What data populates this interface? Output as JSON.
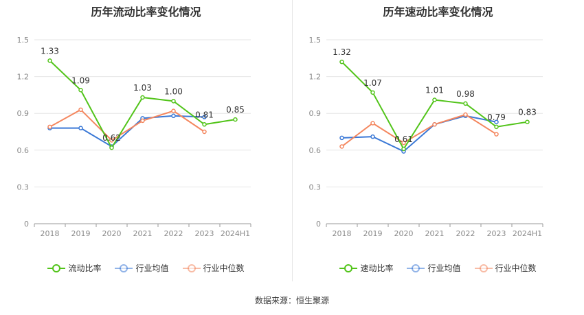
{
  "chart_data": [
    {
      "type": "line",
      "title": "历年流动比率变化情况",
      "categories": [
        "2018",
        "2019",
        "2020",
        "2021",
        "2022",
        "2023",
        "2024H1"
      ],
      "y_ticks": [
        "0",
        "0.3",
        "0.6",
        "0.9",
        "1.2",
        "1.5"
      ],
      "ylim": [
        0,
        1.5
      ],
      "grid": true,
      "legend_position": "bottom",
      "series": [
        {
          "name": "流动比率",
          "color": "#52c41a",
          "values": [
            1.33,
            1.09,
            0.62,
            1.03,
            1.0,
            0.81,
            0.85
          ],
          "labels": [
            "1.33",
            "1.09",
            "0.62",
            "1.03",
            "1.00",
            "0.81",
            "0.85"
          ]
        },
        {
          "name": "行业均值",
          "color": "#3a78d6",
          "values": [
            0.78,
            0.78,
            0.63,
            0.86,
            0.88,
            0.87,
            null
          ]
        },
        {
          "name": "行业中位数",
          "color": "#f4875f",
          "values": [
            0.79,
            0.93,
            0.68,
            0.84,
            0.92,
            0.75,
            null
          ]
        }
      ]
    },
    {
      "type": "line",
      "title": "历年速动比率变化情况",
      "categories": [
        "2018",
        "2019",
        "2020",
        "2021",
        "2022",
        "2023",
        "2024H1"
      ],
      "y_ticks": [
        "0",
        "0.3",
        "0.6",
        "0.9",
        "1.2",
        "1.5"
      ],
      "ylim": [
        0,
        1.5
      ],
      "grid": true,
      "legend_position": "bottom",
      "series": [
        {
          "name": "速动比率",
          "color": "#52c41a",
          "values": [
            1.32,
            1.07,
            0.61,
            1.01,
            0.98,
            0.79,
            0.83
          ],
          "labels": [
            "1.32",
            "1.07",
            "0.61",
            "1.01",
            "0.98",
            "0.79",
            "0.83"
          ]
        },
        {
          "name": "行业均值",
          "color": "#3a78d6",
          "values": [
            0.7,
            0.71,
            0.59,
            0.81,
            0.88,
            0.83,
            null
          ]
        },
        {
          "name": "行业中位数",
          "color": "#f4875f",
          "values": [
            0.63,
            0.82,
            0.66,
            0.81,
            0.89,
            0.73,
            null
          ]
        }
      ]
    }
  ],
  "footer": {
    "source": "数据来源：恒生聚源"
  }
}
